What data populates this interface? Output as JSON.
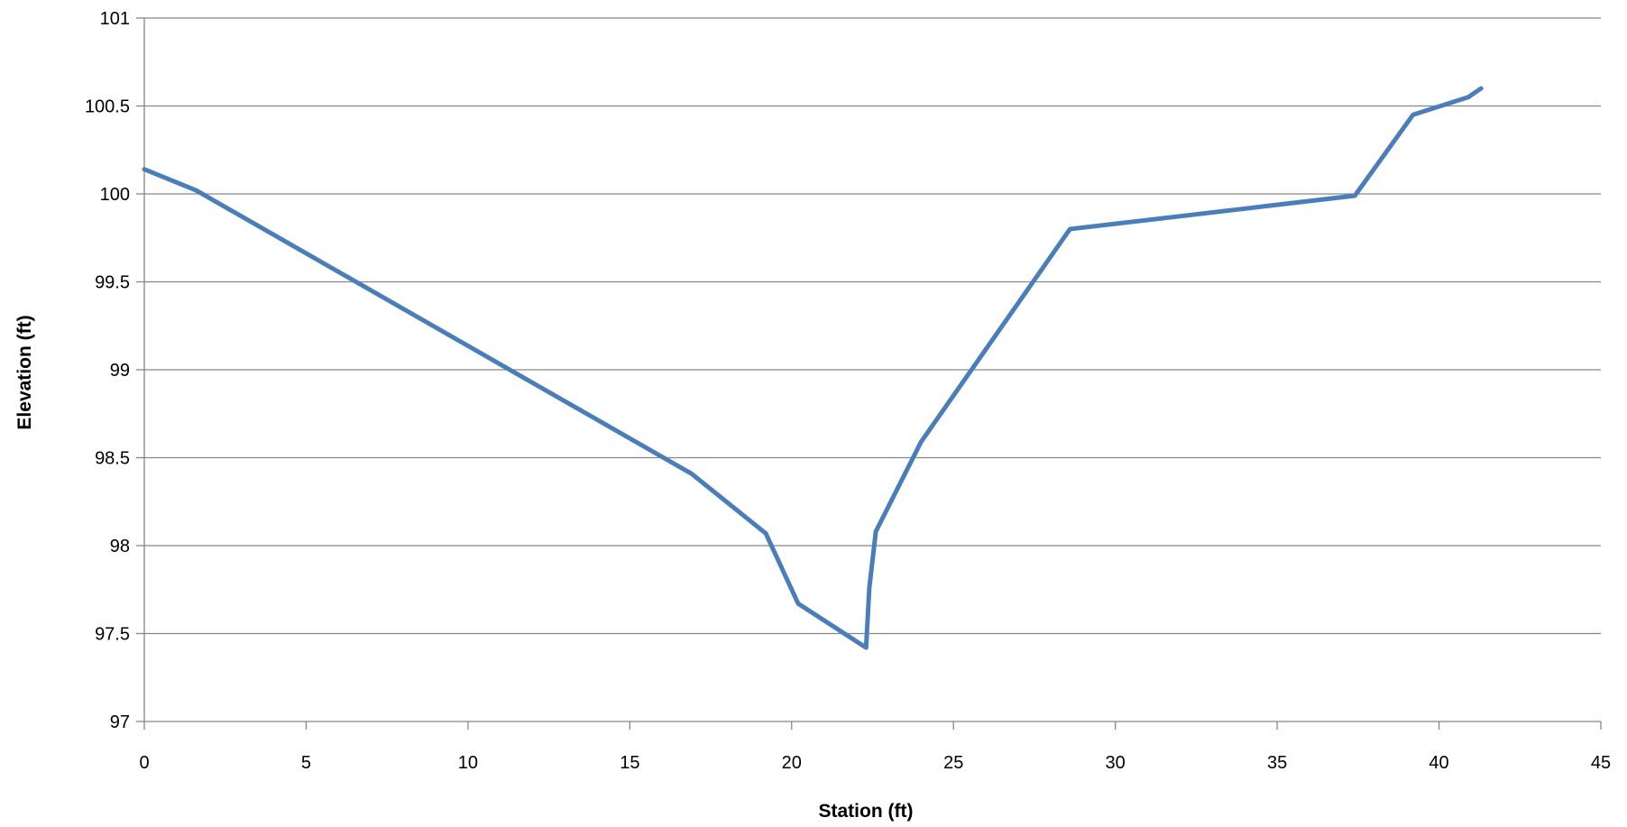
{
  "chart_data": {
    "type": "line",
    "title": "",
    "xlabel": "Station (ft)",
    "ylabel": "Elevation (ft)",
    "xlim": [
      0,
      45
    ],
    "ylim": [
      97,
      101
    ],
    "x_ticks": [
      0,
      5,
      10,
      15,
      20,
      25,
      30,
      35,
      40,
      45
    ],
    "x_tick_labels": [
      "0",
      "5",
      "10",
      "15",
      "20",
      "25",
      "30",
      "35",
      "40",
      "45"
    ],
    "y_ticks": [
      97,
      97.5,
      98,
      98.5,
      99,
      99.5,
      100,
      100.5,
      101
    ],
    "y_tick_labels": [
      "97",
      "97.5",
      "98",
      "98.5",
      "99",
      "99.5",
      "100",
      "100.5",
      "101"
    ],
    "grid": "horizontal",
    "legend": "none",
    "colors": {
      "line": "#4a7ebb",
      "grid": "#868686",
      "axis": "#868686"
    },
    "series": [
      {
        "x": [
          0,
          1.6,
          16.9,
          19.2,
          20.2,
          22.3,
          22.4,
          22.6,
          24,
          28.6,
          37.4,
          39.2,
          40.9,
          41.3
        ],
        "y": [
          100.14,
          100.02,
          98.41,
          98.07,
          97.67,
          97.42,
          97.76,
          98.08,
          98.59,
          99.8,
          99.99,
          100.45,
          100.55,
          100.6
        ]
      }
    ]
  }
}
